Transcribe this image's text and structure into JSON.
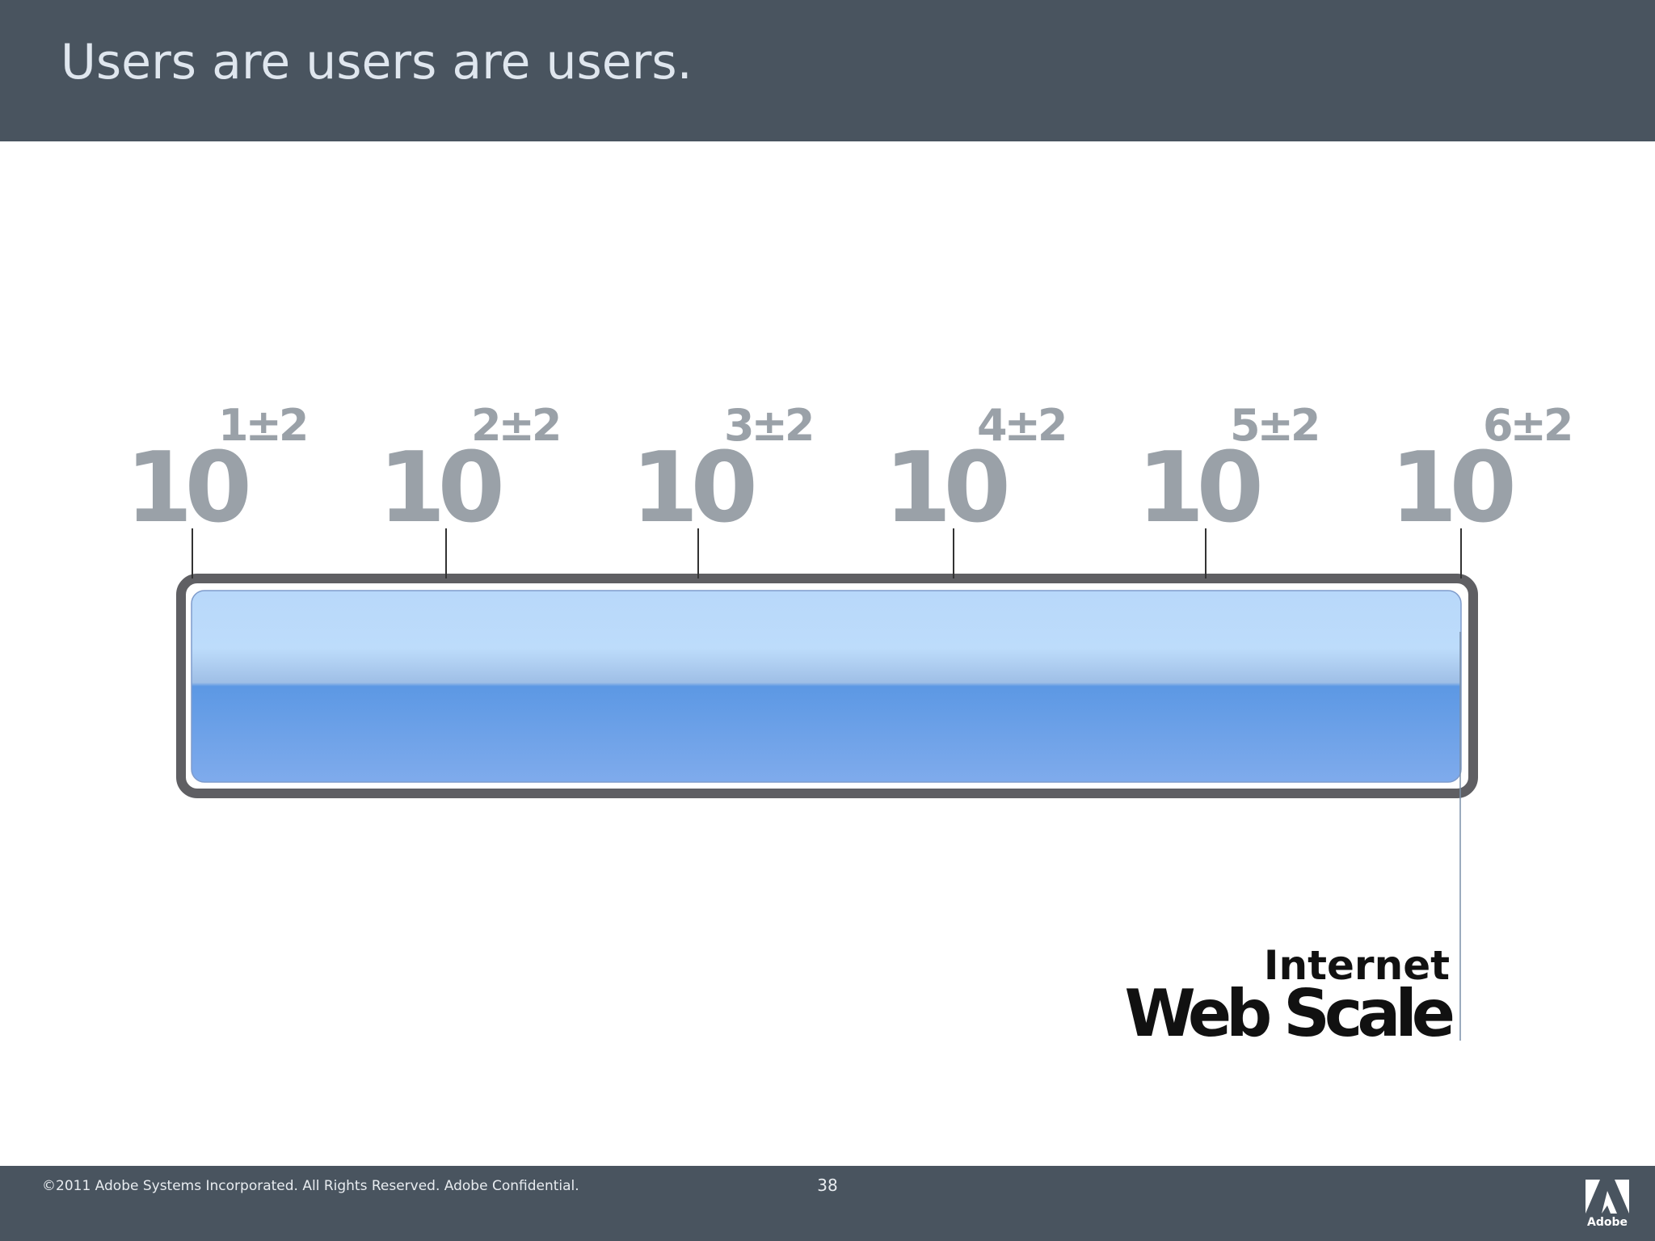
{
  "slide": {
    "title": "Users are users are users."
  },
  "scale": {
    "base": "10",
    "powers": [
      {
        "exponent": "1±2"
      },
      {
        "exponent": "2±2"
      },
      {
        "exponent": "3±2"
      },
      {
        "exponent": "4±2"
      },
      {
        "exponent": "5±2"
      },
      {
        "exponent": "6±2"
      }
    ],
    "marker_label_top": "Internet",
    "marker_label_bottom": "Web Scale"
  },
  "colors": {
    "header_bg": "#49545f",
    "label_gray": "#9aa1a8",
    "bar_frame": "#5f5f63",
    "bar_blue_light": "#bcdcfb",
    "bar_blue_mid": "#5c98e4"
  },
  "footer": {
    "copyright": "©2011 Adobe Systems Incorporated.  All Rights Reserved. Adobe Confidential.",
    "page_number": "38",
    "logo_text": "Adobe"
  }
}
